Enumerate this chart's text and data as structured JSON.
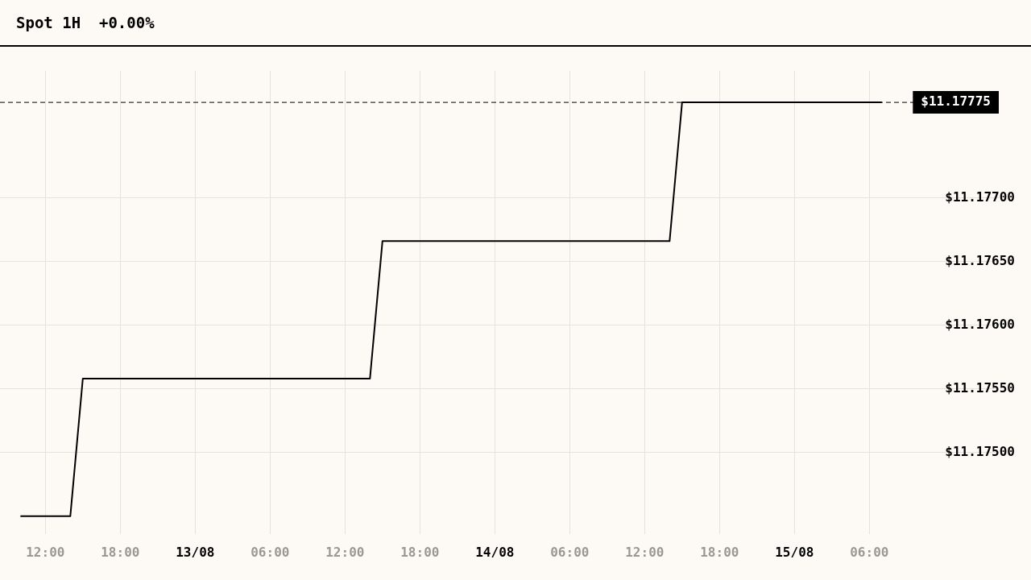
{
  "chart_data": {
    "type": "line",
    "title": "Spot 1H  +0.00%",
    "x": [
      "--08-12T10:00",
      "--08-12T14:00",
      "--08-12T15:00",
      "--08-13T14:00",
      "--08-13T15:00",
      "--08-14T14:00",
      "--08-14T15:00",
      "--08-15T07:00"
    ],
    "values": [
      11.1745,
      11.1745,
      11.17558,
      11.17558,
      11.17666,
      11.17666,
      11.17775,
      11.17775
    ],
    "color": "#000000",
    "xlim": [
      "--08-12T08:22",
      "--08-15T16:22"
    ],
    "xticks": [
      {
        "value": "--08-12T12:00",
        "label": "12:00"
      },
      {
        "value": "--08-12T18:00",
        "label": "18:00"
      },
      {
        "value": "--08-13T00:00",
        "label": "13/08"
      },
      {
        "value": "--08-13T06:00",
        "label": "06:00"
      },
      {
        "value": "--08-13T12:00",
        "label": "12:00"
      },
      {
        "value": "--08-13T18:00",
        "label": "18:00"
      },
      {
        "value": "--08-14T00:00",
        "label": "14/08"
      },
      {
        "value": "--08-14T06:00",
        "label": "06:00"
      },
      {
        "value": "--08-14T12:00",
        "label": "12:00"
      },
      {
        "value": "--08-14T18:00",
        "label": "18:00"
      },
      {
        "value": "--08-15T00:00",
        "label": "15/08"
      },
      {
        "value": "--08-15T06:00",
        "label": "06:00"
      }
    ],
    "ylim": [
      11.17436,
      11.178
    ],
    "yticks": [
      {
        "value": 11.175,
        "label": "$11.17500"
      },
      {
        "value": 11.1755,
        "label": "$11.17550"
      },
      {
        "value": 11.176,
        "label": "$11.17600"
      },
      {
        "value": 11.1765,
        "label": "$11.17650"
      },
      {
        "value": 11.177,
        "label": "$11.17700"
      }
    ],
    "ref_lines": [
      {
        "axis": "y",
        "value": 11.17775,
        "label": "$11.17775",
        "color": "#000000",
        "line_style": "dashed"
      }
    ],
    "grid": true,
    "legend": false,
    "marker": "none",
    "line_style": "solid"
  }
}
